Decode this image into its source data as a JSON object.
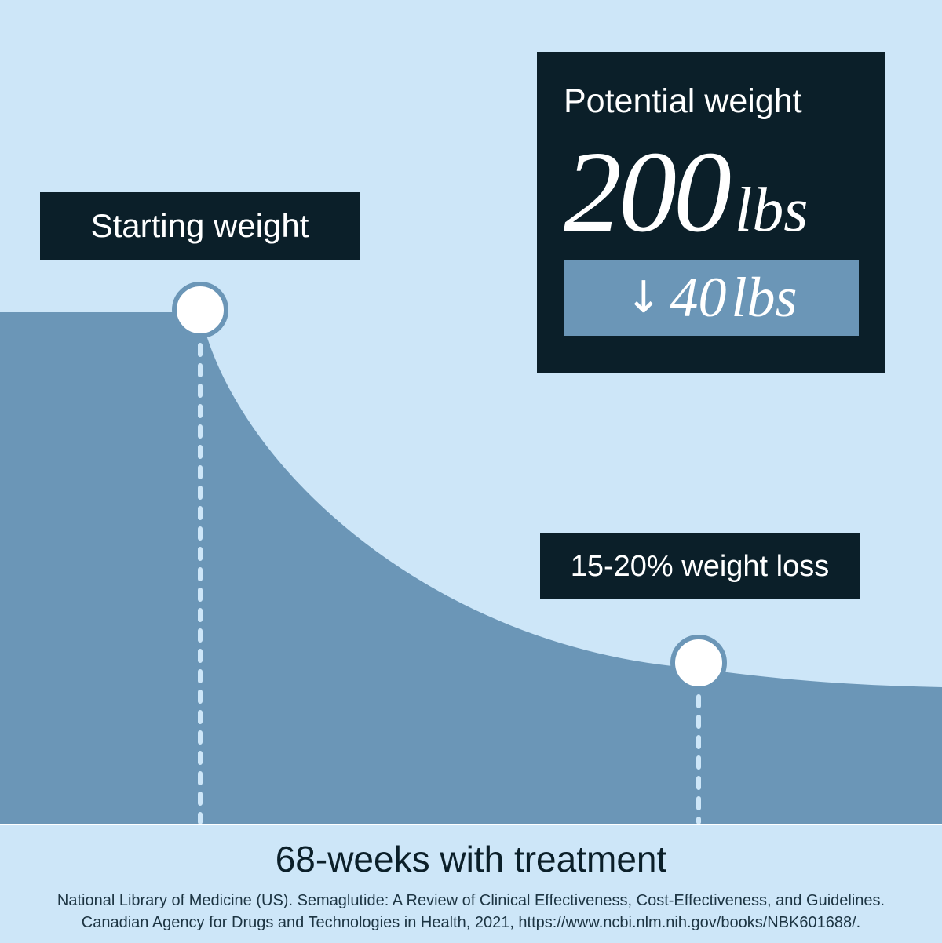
{
  "chart_data": {
    "type": "area",
    "points": [
      {
        "label": "Starting weight"
      },
      {
        "label": "15-20% weight loss"
      }
    ],
    "xlabel": "68-weeks with treatment",
    "colors": {
      "background": "#cde6f8",
      "area": "#6b96b7",
      "box": "#0b1f29",
      "marker": "#ffffff"
    }
  },
  "potential": {
    "title": "Potential weight",
    "value": "200",
    "unit": "lbs",
    "loss_arrow": "↓",
    "loss_value": "40",
    "loss_unit": "lbs"
  },
  "footer": {
    "title": "68-weeks with treatment",
    "source_line1": "National Library of Medicine (US). Semaglutide: A Review of Clinical Effectiveness, Cost-Effectiveness, and Guidelines.",
    "source_line2": "Canadian Agency for Drugs and Technologies in Health, 2021, https://www.ncbi.nlm.nih.gov/books/NBK601688/."
  }
}
